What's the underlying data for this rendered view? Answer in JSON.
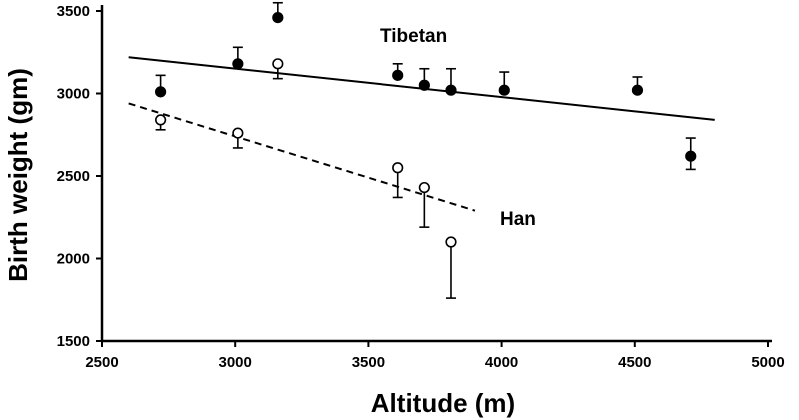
{
  "chart_data": {
    "type": "scatter",
    "xlabel": "Altitude (m)",
    "ylabel": "Birth weight (gm)",
    "xlim": [
      2500,
      5000
    ],
    "ylim": [
      1500,
      3500
    ],
    "xticks": [
      "2500",
      "3000",
      "3500",
      "4000",
      "4500",
      "5000"
    ],
    "yticks": [
      "1500",
      "2000",
      "2500",
      "3000",
      "3500"
    ],
    "grid": false,
    "series": [
      {
        "name": "Tibetan",
        "marker": "filled-circle",
        "color": "#000000",
        "points": [
          {
            "x": 2720,
            "y": 3010,
            "err_up": 100,
            "err_down": 0
          },
          {
            "x": 3010,
            "y": 3180,
            "err_up": 100,
            "err_down": 0
          },
          {
            "x": 3160,
            "y": 3460,
            "err_up": 90,
            "err_down": 0
          },
          {
            "x": 3610,
            "y": 3110,
            "err_up": 70,
            "err_down": 0
          },
          {
            "x": 3710,
            "y": 3050,
            "err_up": 100,
            "err_down": 0
          },
          {
            "x": 3810,
            "y": 3020,
            "err_up": 130,
            "err_down": 0
          },
          {
            "x": 4010,
            "y": 3020,
            "err_up": 110,
            "err_down": 0
          },
          {
            "x": 4510,
            "y": 3020,
            "err_up": 80,
            "err_down": 0
          },
          {
            "x": 4710,
            "y": 2620,
            "err_up": 110,
            "err_down": 80
          }
        ],
        "trend": {
          "style": "solid",
          "from": {
            "x": 2600,
            "y": 3220
          },
          "to": {
            "x": 4800,
            "y": 2840
          }
        }
      },
      {
        "name": "Han",
        "marker": "open-circle",
        "color": "#000000",
        "points": [
          {
            "x": 2720,
            "y": 2840,
            "err_up": 0,
            "err_down": 60
          },
          {
            "x": 3010,
            "y": 2760,
            "err_up": 0,
            "err_down": 90
          },
          {
            "x": 3160,
            "y": 3180,
            "err_up": 0,
            "err_down": 90
          },
          {
            "x": 3610,
            "y": 2550,
            "err_up": 0,
            "err_down": 180
          },
          {
            "x": 3710,
            "y": 2430,
            "err_up": 0,
            "err_down": 240
          },
          {
            "x": 3810,
            "y": 2100,
            "err_up": 0,
            "err_down": 340
          }
        ],
        "trend": {
          "style": "dashed",
          "from": {
            "x": 2600,
            "y": 2940
          },
          "to": {
            "x": 3900,
            "y": 2290
          }
        }
      }
    ]
  }
}
